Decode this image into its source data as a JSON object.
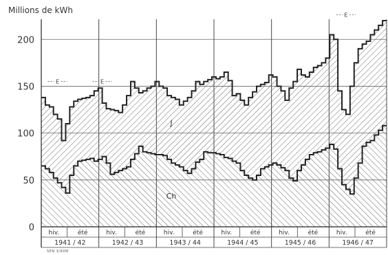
{
  "chart_data": {
    "type": "area",
    "ylabel": "Millions de kWh",
    "ylim": [
      0,
      220
    ],
    "yticks": [
      0,
      50,
      100,
      150,
      200
    ],
    "grid": true,
    "x_unit": "months since October 1941",
    "years": [
      "1941 / 42",
      "1942 / 43",
      "1943 / 44",
      "1944 / 45",
      "1945 / 46",
      "1946 / 47"
    ],
    "season_labels": [
      "hiv.",
      "été"
    ],
    "series": [
      {
        "name": "Ch",
        "values": [
          65,
          62,
          58,
          52,
          47,
          42,
          36,
          55,
          65,
          70,
          71,
          72,
          73,
          70,
          72,
          75,
          68,
          56,
          58,
          60,
          62,
          64,
          72,
          78,
          86,
          80,
          79,
          78,
          77,
          77,
          76,
          72,
          68,
          66,
          64,
          60,
          57,
          62,
          69,
          72,
          80,
          79,
          79,
          78,
          77,
          74,
          73,
          70,
          68,
          60,
          55,
          52,
          50,
          55,
          62,
          64,
          66,
          68,
          66,
          63,
          60,
          52,
          49,
          60,
          66,
          72,
          77,
          79,
          80,
          82,
          84,
          88,
          83,
          62,
          45,
          40,
          35,
          52,
          68,
          86,
          90,
          92,
          98,
          103,
          108
        ]
      },
      {
        "name": "J",
        "values": [
          138,
          130,
          128,
          120,
          115,
          92,
          110,
          128,
          134,
          136,
          137,
          138,
          140,
          145,
          148,
          132,
          126,
          125,
          124,
          122,
          130,
          140,
          155,
          148,
          143,
          145,
          148,
          150,
          155,
          150,
          148,
          140,
          138,
          136,
          130,
          134,
          138,
          145,
          155,
          152,
          155,
          157,
          160,
          158,
          160,
          165,
          156,
          140,
          142,
          135,
          130,
          138,
          144,
          150,
          152,
          154,
          162,
          160,
          150,
          145,
          135,
          148,
          155,
          168,
          162,
          160,
          165,
          170,
          172,
          175,
          180,
          205,
          200,
          145,
          125,
          120,
          150,
          175,
          190,
          195,
          198,
          205,
          210,
          215,
          220
        ]
      }
    ],
    "annotations": [
      {
        "text": "J",
        "x": 32,
        "y": 108
      },
      {
        "text": "Ch",
        "x": 32,
        "y": 30
      },
      {
        "text": "E",
        "x": 4,
        "y": 153
      },
      {
        "text": "E",
        "x": 15,
        "y": 153
      },
      {
        "text": "E",
        "x": 75,
        "y": 224
      }
    ]
  },
  "credit": "SEN 3/90M"
}
